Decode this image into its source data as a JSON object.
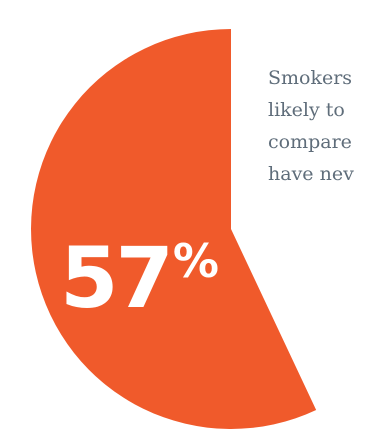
{
  "chart_data": {
    "type": "pie",
    "values": [
      57,
      43
    ],
    "highlight_label": "57%",
    "highlight_number": "57",
    "highlight_symbol": "%",
    "colors": [
      "#f05a2b",
      "#ffffff"
    ]
  },
  "caption": {
    "lines": [
      "Smokers",
      "likely to",
      "compare",
      "have nev"
    ]
  }
}
